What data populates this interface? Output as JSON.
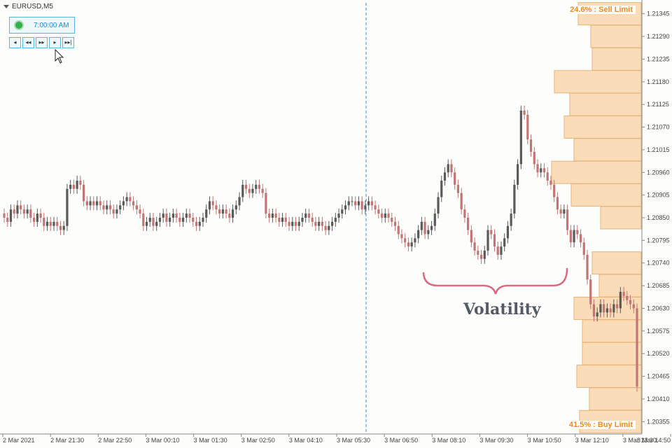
{
  "chart_title": "EURUSD,M5",
  "clock": {
    "time": "7:00:00 AM",
    "status_color": "#32b04b"
  },
  "nav_buttons": [
    "◂",
    "◂◂",
    "▸▸",
    "▸",
    "▸▸|"
  ],
  "profile": {
    "sell_label": "24.6% : Sell Limit",
    "buy_label": "41.5% : Buy Limit",
    "fill": "#fbdcb8",
    "stroke": "#e8b37a"
  },
  "annotation": {
    "label": "Volatility",
    "brace_color": "#d96a82"
  },
  "colors": {
    "bull": "#5a5a5a",
    "bear": "#c27575",
    "separator": "#2f8fd1",
    "axis_text": "#444444"
  },
  "chart_data": {
    "type": "candlestick",
    "symbol": "EURUSD",
    "timeframe": "M5",
    "ylim": [
      1.2033,
      1.2137
    ],
    "y_ticks": [
      1.21345,
      1.2129,
      1.21235,
      1.2118,
      1.21125,
      1.2107,
      1.21015,
      1.2096,
      1.20905,
      1.2085,
      1.20795,
      1.2074,
      1.20685,
      1.2063,
      1.20575,
      1.2052,
      1.20465,
      1.2041,
      1.20355
    ],
    "x_ticks": [
      "2 Mar 2021",
      "2 Mar 21:30",
      "2 Mar 22:50",
      "3 Mar 00:10",
      "3 Mar 01:30",
      "3 Mar 02:50",
      "3 Mar 04:10",
      "3 Mar 05:30",
      "3 Mar 06:50",
      "3 Mar 08:10",
      "3 Mar 09:30",
      "3 Mar 10:50",
      "3 Mar 12:10",
      "3 Mar 13:30",
      "3 Mar 14:50"
    ],
    "separator_time": "3 Mar 07:00",
    "closes": [
      1.2085,
      1.2084,
      1.2087,
      1.2086,
      1.2088,
      1.2087,
      1.2086,
      1.2087,
      1.2085,
      1.2084,
      1.2086,
      1.2085,
      1.2083,
      1.2084,
      1.2083,
      1.2084,
      1.2083,
      1.2082,
      1.2083,
      1.2092,
      1.2093,
      1.2092,
      1.2094,
      1.2093,
      1.2089,
      1.2088,
      1.2089,
      1.2088,
      1.2089,
      1.2088,
      1.2087,
      1.2088,
      1.2087,
      1.2086,
      1.2087,
      1.2088,
      1.2089,
      1.209,
      1.2089,
      1.2088,
      1.2087,
      1.2086,
      1.2083,
      1.2084,
      1.2085,
      1.2083,
      1.2084,
      1.2085,
      1.2086,
      1.2084,
      1.2085,
      1.2086,
      1.2085,
      1.2084,
      1.2085,
      1.2086,
      1.2085,
      1.2084,
      1.2083,
      1.2084,
      1.2085,
      1.2087,
      1.2089,
      1.2088,
      1.2087,
      1.2086,
      1.2087,
      1.2086,
      1.2085,
      1.2087,
      1.2088,
      1.209,
      1.2093,
      1.2092,
      1.2091,
      1.2092,
      1.2093,
      1.2092,
      1.2091,
      1.2086,
      1.2085,
      1.2086,
      1.2085,
      1.2084,
      1.2085,
      1.2084,
      1.2083,
      1.2084,
      1.2083,
      1.2084,
      1.2085,
      1.2086,
      1.2085,
      1.2084,
      1.2083,
      1.2084,
      1.2083,
      1.2082,
      1.2083,
      1.2084,
      1.2085,
      1.2086,
      1.2087,
      1.2088,
      1.2089,
      1.2089,
      1.2088,
      1.2089,
      1.2087,
      1.2088,
      1.2089,
      1.2088,
      1.2087,
      1.2086,
      1.2085,
      1.2086,
      1.2085,
      1.2084,
      1.2083,
      1.2081,
      1.208,
      1.2079,
      1.2078,
      1.2079,
      1.208,
      1.2082,
      1.2084,
      1.2081,
      1.2082,
      1.2083,
      1.2086,
      1.209,
      1.2094,
      1.2096,
      1.2098,
      1.2096,
      1.2093,
      1.2091,
      1.2087,
      1.2085,
      1.2082,
      1.2079,
      1.2077,
      1.2076,
      1.2075,
      1.2077,
      1.2082,
      1.2081,
      1.2078,
      1.2076,
      1.2078,
      1.208,
      1.2083,
      1.2086,
      1.2093,
      1.2098,
      1.2111,
      1.211,
      1.2104,
      1.2101,
      1.2098,
      1.2096,
      1.2097,
      1.2096,
      1.2094,
      1.2093,
      1.209,
      1.2087,
      1.2086,
      1.2087,
      1.2082,
      1.2079,
      1.2082,
      1.2081,
      1.2079,
      1.2076,
      1.207,
      1.2064,
      1.2061,
      1.2062,
      1.2064,
      1.2062,
      1.2063,
      1.2062,
      1.2064,
      1.2063,
      1.2067,
      1.2066,
      1.2065,
      1.2064,
      1.2063,
      1.2044
    ]
  }
}
